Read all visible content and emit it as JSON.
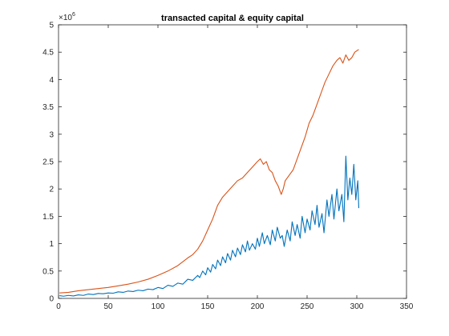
{
  "chart_data": {
    "type": "line",
    "title": "transacted capital & equity capital",
    "xlabel": "",
    "ylabel": "",
    "xlim": [
      0,
      350
    ],
    "ylim": [
      0,
      5000000
    ],
    "x_ticks": [
      0,
      50,
      100,
      150,
      200,
      250,
      300,
      350
    ],
    "y_ticks": [
      0,
      500000,
      1000000,
      1500000,
      2000000,
      2500000,
      3000000,
      3500000,
      4000000,
      4500000,
      5000000
    ],
    "y_tick_labels": [
      "0",
      "0.5",
      "1",
      "1.5",
      "2",
      "2.5",
      "3",
      "3.5",
      "4",
      "4.5",
      "5"
    ],
    "y_exponent_label": "×10",
    "y_exponent_power": "6",
    "grid": false,
    "series": [
      {
        "color": "#0072BD",
        "points": [
          [
            1,
            50000
          ],
          [
            5,
            40000
          ],
          [
            10,
            55000
          ],
          [
            15,
            45000
          ],
          [
            20,
            65000
          ],
          [
            25,
            55000
          ],
          [
            30,
            80000
          ],
          [
            35,
            70000
          ],
          [
            40,
            90000
          ],
          [
            45,
            85000
          ],
          [
            50,
            100000
          ],
          [
            55,
            95000
          ],
          [
            60,
            120000
          ],
          [
            65,
            110000
          ],
          [
            70,
            135000
          ],
          [
            75,
            125000
          ],
          [
            80,
            150000
          ],
          [
            85,
            140000
          ],
          [
            90,
            170000
          ],
          [
            95,
            160000
          ],
          [
            100,
            200000
          ],
          [
            105,
            180000
          ],
          [
            110,
            240000
          ],
          [
            115,
            220000
          ],
          [
            120,
            280000
          ],
          [
            125,
            260000
          ],
          [
            130,
            350000
          ],
          [
            135,
            330000
          ],
          [
            140,
            420000
          ],
          [
            142,
            380000
          ],
          [
            145,
            500000
          ],
          [
            148,
            430000
          ],
          [
            150,
            560000
          ],
          [
            153,
            480000
          ],
          [
            155,
            620000
          ],
          [
            158,
            540000
          ],
          [
            160,
            700000
          ],
          [
            163,
            600000
          ],
          [
            165,
            760000
          ],
          [
            168,
            650000
          ],
          [
            170,
            820000
          ],
          [
            173,
            700000
          ],
          [
            175,
            880000
          ],
          [
            178,
            760000
          ],
          [
            180,
            920000
          ],
          [
            183,
            800000
          ],
          [
            185,
            980000
          ],
          [
            188,
            850000
          ],
          [
            190,
            1050000
          ],
          [
            192,
            880000
          ],
          [
            195,
            1000000
          ],
          [
            198,
            900000
          ],
          [
            200,
            1100000
          ],
          [
            202,
            950000
          ],
          [
            205,
            1200000
          ],
          [
            207,
            1000000
          ],
          [
            210,
            1150000
          ],
          [
            213,
            980000
          ],
          [
            215,
            1250000
          ],
          [
            218,
            1050000
          ],
          [
            220,
            1300000
          ],
          [
            223,
            1100000
          ],
          [
            225,
            1150000
          ],
          [
            227,
            950000
          ],
          [
            230,
            1250000
          ],
          [
            233,
            1050000
          ],
          [
            235,
            1400000
          ],
          [
            238,
            1150000
          ],
          [
            240,
            1350000
          ],
          [
            243,
            1100000
          ],
          [
            245,
            1500000
          ],
          [
            248,
            1200000
          ],
          [
            250,
            1450000
          ],
          [
            253,
            1250000
          ],
          [
            255,
            1600000
          ],
          [
            258,
            1350000
          ],
          [
            260,
            1700000
          ],
          [
            262,
            1300000
          ],
          [
            265,
            1550000
          ],
          [
            267,
            1200000
          ],
          [
            270,
            1800000
          ],
          [
            272,
            1500000
          ],
          [
            275,
            1900000
          ],
          [
            277,
            1450000
          ],
          [
            280,
            2000000
          ],
          [
            282,
            1600000
          ],
          [
            285,
            1900000
          ],
          [
            287,
            1400000
          ],
          [
            289,
            2600000
          ],
          [
            291,
            1800000
          ],
          [
            293,
            2200000
          ],
          [
            295,
            1900000
          ],
          [
            297,
            2450000
          ],
          [
            299,
            1800000
          ],
          [
            301,
            2150000
          ],
          [
            302,
            1650000
          ]
        ]
      },
      {
        "color": "#D95319",
        "points": [
          [
            1,
            100000
          ],
          [
            10,
            110000
          ],
          [
            20,
            140000
          ],
          [
            30,
            160000
          ],
          [
            40,
            180000
          ],
          [
            50,
            200000
          ],
          [
            60,
            230000
          ],
          [
            70,
            260000
          ],
          [
            80,
            300000
          ],
          [
            90,
            350000
          ],
          [
            100,
            420000
          ],
          [
            110,
            500000
          ],
          [
            120,
            600000
          ],
          [
            130,
            740000
          ],
          [
            135,
            800000
          ],
          [
            140,
            900000
          ],
          [
            145,
            1050000
          ],
          [
            150,
            1250000
          ],
          [
            155,
            1450000
          ],
          [
            160,
            1700000
          ],
          [
            165,
            1850000
          ],
          [
            170,
            1950000
          ],
          [
            175,
            2050000
          ],
          [
            180,
            2150000
          ],
          [
            185,
            2200000
          ],
          [
            190,
            2300000
          ],
          [
            195,
            2400000
          ],
          [
            200,
            2500000
          ],
          [
            203,
            2550000
          ],
          [
            206,
            2450000
          ],
          [
            209,
            2500000
          ],
          [
            212,
            2350000
          ],
          [
            215,
            2300000
          ],
          [
            218,
            2150000
          ],
          [
            221,
            2050000
          ],
          [
            224,
            1900000
          ],
          [
            226,
            2000000
          ],
          [
            228,
            2150000
          ],
          [
            232,
            2250000
          ],
          [
            236,
            2350000
          ],
          [
            240,
            2550000
          ],
          [
            244,
            2750000
          ],
          [
            248,
            2950000
          ],
          [
            252,
            3200000
          ],
          [
            256,
            3350000
          ],
          [
            260,
            3550000
          ],
          [
            264,
            3750000
          ],
          [
            268,
            3950000
          ],
          [
            272,
            4100000
          ],
          [
            276,
            4250000
          ],
          [
            280,
            4350000
          ],
          [
            283,
            4400000
          ],
          [
            286,
            4300000
          ],
          [
            289,
            4450000
          ],
          [
            292,
            4350000
          ],
          [
            295,
            4400000
          ],
          [
            298,
            4500000
          ],
          [
            302,
            4550000
          ]
        ]
      }
    ]
  }
}
